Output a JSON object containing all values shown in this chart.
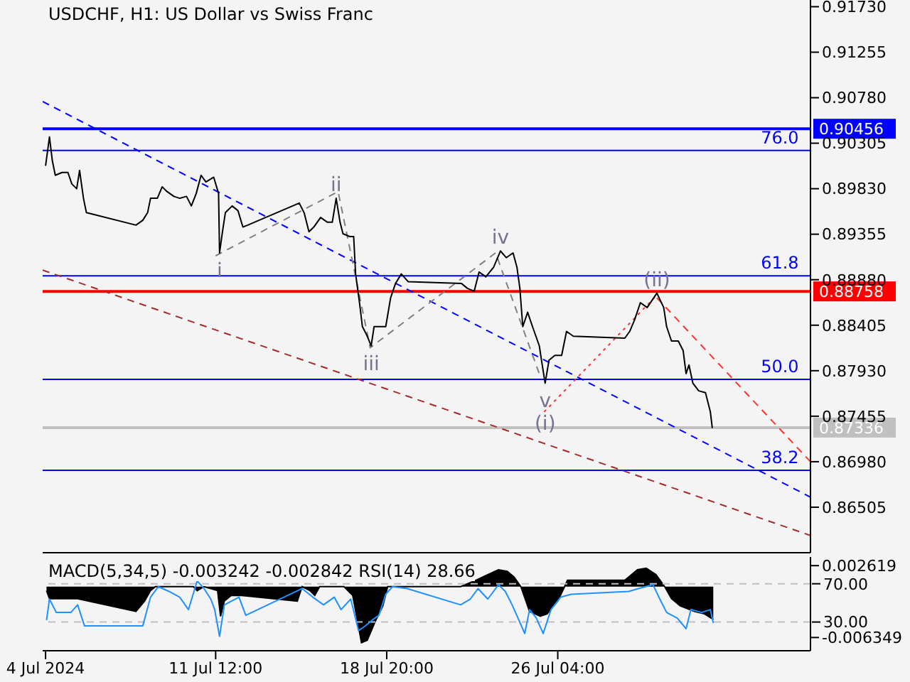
{
  "chart_data": [
    {
      "type": "line",
      "title": "USDCHF, H1:  US Dollar vs Swiss Franc",
      "tick_labels": "y",
      "xlim": [
        "2024-07-04T02:00",
        "2024-08-06T00:00"
      ],
      "ylim": [
        0.8603,
        0.918
      ],
      "yticks": [
        {
          "value": 0.9173,
          "label": "0.91730"
        },
        {
          "value": 0.91255,
          "label": "0.91255"
        },
        {
          "value": 0.9078,
          "label": "0.90780"
        },
        {
          "value": 0.90305,
          "label": "0.90305"
        },
        {
          "value": 0.8983,
          "label": "0.89830"
        },
        {
          "value": 0.89355,
          "label": "0.89355"
        },
        {
          "value": 0.8888,
          "label": "0.88880"
        },
        {
          "value": 0.88405,
          "label": "0.88405"
        },
        {
          "value": 0.8793,
          "label": "0.87930"
        },
        {
          "value": 0.87455,
          "label": "0.87455"
        },
        {
          "value": 0.8698,
          "label": "0.86980"
        },
        {
          "value": 0.86505,
          "label": "0.86505"
        }
      ],
      "series": [
        {
          "color": "#0000ff",
          "line_style": "dashed",
          "x": [
            "2024-07-04T02:00",
            "2024-08-06T00:00"
          ],
          "values": [
            0.9074,
            0.8661
          ]
        },
        {
          "color": "#a52a2a",
          "line_style": "dashed",
          "x": [
            "2024-07-04T02:00",
            "2024-08-06T00:00"
          ],
          "values": [
            0.8898,
            0.8621
          ]
        },
        {
          "color": "#ff3030",
          "line_style": "dashed",
          "x": [
            "2024-07-30T10:00",
            "2024-08-06T00:00"
          ],
          "values": [
            0.8869,
            0.8698
          ]
        },
        {
          "color": "#ff3030",
          "line_style": "dotted",
          "x": [
            "2024-07-25T14:00",
            "2024-07-30T10:00"
          ],
          "values": [
            0.875,
            0.8872
          ]
        },
        {
          "color": "#808080",
          "line_style": "dashed",
          "x": [
            "2024-07-11T12:00",
            "2024-07-16T18:00",
            "2024-07-18T03:00",
            "2024-07-23T12:00",
            "2024-07-25T10:00"
          ],
          "values": [
            0.8913,
            0.898,
            0.8817,
            0.8916,
            0.8787
          ]
        },
        {
          "color": "#000000",
          "x": [
            "2024-07-04T05:00",
            "2024-07-04T09:00",
            "2024-07-04T12:00",
            "2024-07-04T15:00",
            "2024-07-04T22:00",
            "2024-07-05T04:00",
            "2024-07-05T08:00",
            "2024-07-05T13:00",
            "2024-07-05T16:00",
            "2024-07-05T20:00",
            "2024-07-05T23:00",
            "2024-07-08T02:00",
            "2024-07-08T09:00",
            "2024-07-08T14:00",
            "2024-07-08T17:00",
            "2024-07-09T00:00",
            "2024-07-09T05:00",
            "2024-07-09T10:00",
            "2024-07-09T17:00",
            "2024-07-09T23:00",
            "2024-07-10T06:00",
            "2024-07-10T11:00",
            "2024-07-10T16:00",
            "2024-07-10T21:00",
            "2024-07-11T02:00",
            "2024-07-11T10:00",
            "2024-07-11T15:00",
            "2024-07-11T16:00",
            "2024-07-11T19:00",
            "2024-07-11T22:00",
            "2024-07-12T05:00",
            "2024-07-12T11:00",
            "2024-07-12T16:00",
            "2024-07-12T21:00",
            "2024-07-15T02:00",
            "2024-07-15T07:00",
            "2024-07-15T12:00",
            "2024-07-15T17:00",
            "2024-07-16T00:00",
            "2024-07-16T07:00",
            "2024-07-16T12:00",
            "2024-07-16T16:00",
            "2024-07-16T20:00",
            "2024-07-16T23:00",
            "2024-07-17T06:00",
            "2024-07-17T10:00",
            "2024-07-17T12:00",
            "2024-07-17T16:00",
            "2024-07-17T19:00",
            "2024-07-18T00:00",
            "2024-07-18T04:00",
            "2024-07-18T07:00",
            "2024-07-18T14:00",
            "2024-07-18T19:00",
            "2024-07-19T00:00",
            "2024-07-19T05:00",
            "2024-07-19T11:00",
            "2024-07-19T18:00",
            "2024-07-22T01:00",
            "2024-07-22T07:00",
            "2024-07-22T14:00",
            "2024-07-22T19:00",
            "2024-07-23T02:00",
            "2024-07-23T10:00",
            "2024-07-23T17:00",
            "2024-07-23T23:00",
            "2024-07-24T06:00",
            "2024-07-24T10:00",
            "2024-07-24T13:00",
            "2024-07-24T16:00",
            "2024-07-24T21:00",
            "2024-07-25T02:00",
            "2024-07-25T09:00",
            "2024-07-25T12:00",
            "2024-07-25T15:00",
            "2024-07-25T19:00",
            "2024-07-26T01:00",
            "2024-07-26T08:00",
            "2024-07-26T13:00",
            "2024-07-26T20:00",
            "2024-07-29T01:00",
            "2024-07-29T06:00",
            "2024-07-29T11:00",
            "2024-07-29T17:00",
            "2024-07-30T00:00",
            "2024-07-30T10:00",
            "2024-07-30T17:00",
            "2024-07-30T20:00",
            "2024-07-31T01:00",
            "2024-07-31T08:00",
            "2024-07-31T13:00",
            "2024-07-31T16:00",
            "2024-07-31T19:00",
            "2024-07-31T23:00",
            "2024-08-01T05:00",
            "2024-08-01T12:00",
            "2024-08-01T17:00",
            "2024-08-01T19:00"
          ],
          "values": [
            0.9007,
            0.9037,
            0.9012,
            0.8997,
            0.9,
            0.9,
            0.8988,
            0.8983,
            0.9002,
            0.8973,
            0.8958,
            0.8945,
            0.895,
            0.8958,
            0.8973,
            0.8973,
            0.8985,
            0.898,
            0.8975,
            0.8973,
            0.8975,
            0.8965,
            0.8978,
            0.8997,
            0.899,
            0.8995,
            0.8978,
            0.8916,
            0.8938,
            0.8958,
            0.8965,
            0.896,
            0.8943,
            0.8945,
            0.8968,
            0.8958,
            0.8938,
            0.8943,
            0.8953,
            0.8948,
            0.8948,
            0.8973,
            0.8948,
            0.8936,
            0.8933,
            0.8933,
            0.8894,
            0.8864,
            0.8839,
            0.8829,
            0.8819,
            0.8839,
            0.8839,
            0.8839,
            0.8869,
            0.8884,
            0.8894,
            0.8886,
            0.8884,
            0.8879,
            0.8876,
            0.8896,
            0.8891,
            0.8901,
            0.8918,
            0.8911,
            0.8916,
            0.8901,
            0.8879,
            0.8839,
            0.8854,
            0.8839,
            0.8819,
            0.8799,
            0.878,
            0.8804,
            0.8809,
            0.8809,
            0.8834,
            0.8829,
            0.8827,
            0.8834,
            0.8846,
            0.8864,
            0.8859,
            0.8874,
            0.8859,
            0.8839,
            0.8824,
            0.8824,
            0.8814,
            0.879,
            0.8799,
            0.878,
            0.8772,
            0.877,
            0.875,
            0.8733
          ]
        }
      ],
      "ref_lines": [
        {
          "axis": "y",
          "value": 0.90456,
          "label": "0.90456",
          "color": "#0000ff"
        },
        {
          "axis": "y",
          "value": 0.9023,
          "color": "#0000ff"
        },
        {
          "axis": "y",
          "value": 0.8892,
          "color": "#0000ff"
        },
        {
          "axis": "y",
          "value": 0.88758,
          "label": "0.88758",
          "color": "#ff0000"
        },
        {
          "axis": "y",
          "value": 0.8784,
          "color": "#0000ff"
        },
        {
          "axis": "y",
          "value": 0.87336,
          "label": "0.87336",
          "color": "#c0c0c0"
        },
        {
          "axis": "y",
          "value": 0.8689,
          "color": "#0000ff"
        }
      ],
      "annotations": [
        {
          "text": "i",
          "x": "2024-07-11T16:00",
          "y": 0.8916
        },
        {
          "text": "ii",
          "x": "2024-07-16T16:00",
          "y": 0.8973
        },
        {
          "text": "iii",
          "x": "2024-07-18T04:00",
          "y": 0.8819
        },
        {
          "text": "iv",
          "x": "2024-07-23T17:00",
          "y": 0.8918
        },
        {
          "text": "v",
          "x": "2024-07-25T15:00",
          "y": 0.878
        },
        {
          "text": "(i)",
          "x": "2024-07-25T15:00",
          "y": 0.878
        },
        {
          "text": "(ii)",
          "x": "2024-07-30T10:00",
          "y": 0.8874
        },
        {
          "text": "76.0",
          "x": "2024-08-05T12:00",
          "y": 0.9023
        },
        {
          "text": "61.8",
          "x": "2024-08-05T12:00",
          "y": 0.8892
        },
        {
          "text": "50.0",
          "x": "2024-08-05T12:00",
          "y": 0.8784
        },
        {
          "text": "38.2",
          "x": "2024-08-05T12:00",
          "y": 0.8689
        }
      ]
    },
    {
      "type": "line",
      "title": "MACD(5,34,5) -0.003242 -0.002842 RSI(14) 28.66",
      "xlim": [
        "2024-07-04T02:00",
        "2024-08-06T00:00"
      ],
      "xticks": [
        {
          "value": "2024-07-04T05:00",
          "label": "4 Jul 2024"
        },
        {
          "value": "2024-07-11T12:00",
          "label": "11 Jul 12:00"
        },
        {
          "value": "2024-07-18T20:00",
          "label": "18 Jul 20:00"
        },
        {
          "value": "2024-07-26T04:00",
          "label": "26 Jul 04:00"
        }
      ],
      "ylim": [
        -0.008,
        0.0037
      ],
      "yticks": [
        0.002619,
        -0.006349
      ],
      "y2lim": [
        0,
        98
      ],
      "y2ticks": [
        {
          "value": 70,
          "label": "70.00"
        },
        {
          "value": 30,
          "label": "30.00"
        }
      ],
      "series": [
        {
          "type": "area",
          "color": "#000000",
          "x": [
            "2024-07-04T06:00",
            "2024-07-04T09:00",
            "2024-07-04T23:00",
            "2024-07-05T14:00",
            "2024-07-08T02:00",
            "2024-07-08T11:00",
            "2024-07-08T17:00",
            "2024-07-08T22:00",
            "2024-07-09T23:00",
            "2024-07-10T13:00",
            "2024-07-10T17:00",
            "2024-07-11T00:00",
            "2024-07-11T14:00",
            "2024-07-11T17:00",
            "2024-07-11T21:00",
            "2024-07-12T04:00",
            "2024-07-12T15:00",
            "2024-07-15T00:00",
            "2024-07-15T05:00",
            "2024-07-15T13:00",
            "2024-07-15T18:00",
            "2024-07-15T23:00",
            "2024-07-17T00:00",
            "2024-07-17T09:00",
            "2024-07-17T15:00",
            "2024-07-17T18:00",
            "2024-07-18T00:00",
            "2024-07-18T08:00",
            "2024-07-18T16:00",
            "2024-07-18T21:00",
            "2024-07-22T00:00",
            "2024-07-22T16:00",
            "2024-07-23T04:00",
            "2024-07-23T15:00",
            "2024-07-24T00:00",
            "2024-07-24T07:00",
            "2024-07-24T14:00",
            "2024-07-24T23:00",
            "2024-07-25T10:00",
            "2024-07-25T17:00",
            "2024-07-26T04:00",
            "2024-07-26T11:00",
            "2024-07-26T14:00",
            "2024-07-29T01:00",
            "2024-07-29T14:00",
            "2024-07-29T23:00",
            "2024-07-30T09:00",
            "2024-07-30T18:00",
            "2024-07-31T01:00",
            "2024-07-31T10:00",
            "2024-08-01T01:00",
            "2024-08-01T11:00",
            "2024-08-01T20:00"
          ],
          "values": [
            -0.0005,
            -0.0015,
            -0.0015,
            -0.0015,
            -0.0031,
            -0.0018,
            -0.0005,
            0,
            0,
            0,
            -0.0005,
            0,
            -0.0005,
            -0.0037,
            -0.0018,
            -0.0011,
            -0.0011,
            -0.0018,
            0,
            -0.0005,
            -0.0011,
            0,
            0,
            -0.0011,
            -0.005,
            -0.007,
            -0.0067,
            -0.0044,
            -0.0024,
            0,
            0,
            0.0008,
            0.0015,
            0.0021,
            0.0019,
            0.0012,
            0,
            -0.0031,
            -0.0037,
            -0.0034,
            -0.0018,
            0,
            0.0008,
            0.0008,
            0.0021,
            0.0023,
            0.0015,
            0,
            -0.0015,
            -0.0024,
            -0.0031,
            -0.0034,
            -0.0041
          ]
        },
        {
          "color": "#1e90ff",
          "axis": "y2",
          "x": [
            "2024-07-04T06:00",
            "2024-07-04T09:00",
            "2024-07-04T16:00",
            "2024-07-05T07:00",
            "2024-07-05T14:00",
            "2024-07-05T21:00",
            "2024-07-08T09:00",
            "2024-07-08T17:00",
            "2024-07-09T01:00",
            "2024-07-09T12:00",
            "2024-07-09T23:00",
            "2024-07-10T08:00",
            "2024-07-10T17:00",
            "2024-07-11T00:00",
            "2024-07-11T07:00",
            "2024-07-11T11:00",
            "2024-07-11T16:00",
            "2024-07-11T21:00",
            "2024-07-12T12:00",
            "2024-07-12T19:00",
            "2024-07-15T05:00",
            "2024-07-15T16:00",
            "2024-07-16T03:00",
            "2024-07-16T14:00",
            "2024-07-16T21:00",
            "2024-07-17T07:00",
            "2024-07-17T15:00",
            "2024-07-17T22:00",
            "2024-07-18T05:00",
            "2024-07-18T12:00",
            "2024-07-18T19:00",
            "2024-07-19T02:00",
            "2024-07-19T17:00",
            "2024-07-22T00:00",
            "2024-07-22T10:00",
            "2024-07-22T18:00",
            "2024-07-23T04:00",
            "2024-07-23T15:00",
            "2024-07-23T22:00",
            "2024-07-24T05:00",
            "2024-07-24T12:00",
            "2024-07-24T18:00",
            "2024-07-24T23:00",
            "2024-07-25T06:00",
            "2024-07-25T13:00",
            "2024-07-25T21:00",
            "2024-07-26T07:00",
            "2024-07-26T18:00",
            "2024-07-29T05:00",
            "2024-07-29T15:00",
            "2024-07-30T06:00",
            "2024-07-30T13:00",
            "2024-07-30T20:00",
            "2024-07-31T07:00",
            "2024-07-31T16:00",
            "2024-07-31T21:00",
            "2024-08-01T08:00",
            "2024-08-01T17:00",
            "2024-08-01T20:00"
          ],
          "values": [
            32,
            54,
            40,
            40,
            48,
            26,
            26,
            56,
            67,
            62,
            56,
            43,
            73,
            65,
            54,
            43,
            15,
            48,
            56,
            37,
            65,
            56,
            48,
            56,
            43,
            54,
            21,
            26,
            32,
            37,
            59,
            67,
            65,
            48,
            54,
            65,
            54,
            69,
            62,
            48,
            32,
            18,
            43,
            34,
            18,
            43,
            56,
            59,
            62,
            65,
            69,
            54,
            40,
            34,
            23,
            43,
            40,
            43,
            29
          ]
        }
      ],
      "ref_lines": [
        {
          "axis": "y2",
          "value": 70,
          "color": "#c0c0c0",
          "line_style": "dashed"
        },
        {
          "axis": "y2",
          "value": 30,
          "color": "#c0c0c0",
          "line_style": "dashed"
        }
      ]
    }
  ]
}
